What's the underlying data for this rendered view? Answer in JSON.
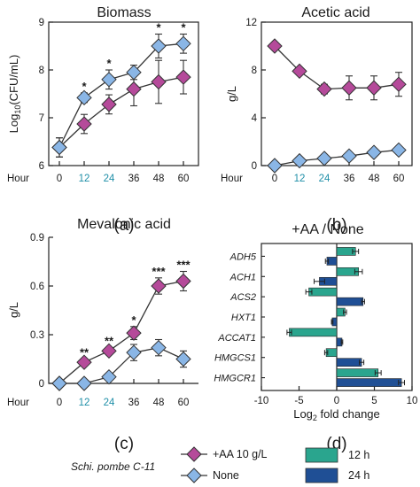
{
  "colors": {
    "aa": "#b54a9a",
    "none": "#8ab6e6",
    "h12": "#2aa58e",
    "h24": "#1f4f95",
    "tick_blue": "#1f8fa8",
    "line": "#333333"
  },
  "legend": {
    "strain": "Schi. pombe C-11",
    "aa_label": "+AA 10 g/L",
    "none_label": "None",
    "h12_label": "12 h",
    "h24_label": "24 h"
  },
  "chart_data": [
    {
      "id": "a",
      "type": "line",
      "title": "Biomass",
      "panel_label": "(a)",
      "ylabel": "Log10(CFU/mL)",
      "x_prefix": "Hour",
      "x": [
        0,
        12,
        24,
        36,
        48,
        60
      ],
      "x_labels": [
        "0",
        "12",
        "24",
        "36",
        "48",
        "60"
      ],
      "ylim": [
        6,
        9
      ],
      "yticks": [
        "6",
        "7",
        "8",
        "9"
      ],
      "series": [
        {
          "name": "+AA 10 g/L",
          "values": [
            6.38,
            6.87,
            7.28,
            7.6,
            7.75,
            7.85
          ],
          "err": [
            0.2,
            0.2,
            0.2,
            0.35,
            0.45,
            0.35
          ]
        },
        {
          "name": "None",
          "values": [
            6.38,
            7.42,
            7.8,
            7.95,
            8.5,
            8.55
          ],
          "err": [
            0.2,
            0.1,
            0.2,
            0.15,
            0.25,
            0.2
          ]
        }
      ],
      "annotations": [
        {
          "x": 12,
          "text": "*"
        },
        {
          "x": 24,
          "text": "*"
        },
        {
          "x": 48,
          "text": "*"
        },
        {
          "x": 60,
          "text": "*"
        }
      ]
    },
    {
      "id": "b",
      "type": "line",
      "title": "Acetic acid",
      "panel_label": "(b)",
      "ylabel": "g/L",
      "x_prefix": "Hour",
      "x": [
        0,
        12,
        24,
        36,
        48,
        60
      ],
      "x_labels": [
        "0",
        "12",
        "24",
        "36",
        "48",
        "60"
      ],
      "ylim": [
        0,
        12
      ],
      "yticks": [
        "0",
        "4",
        "8",
        "12"
      ],
      "series": [
        {
          "name": "+AA 10 g/L",
          "values": [
            10.0,
            7.9,
            6.4,
            6.5,
            6.5,
            6.8
          ],
          "err": [
            0.2,
            0.3,
            0.4,
            1.0,
            1.0,
            1.0
          ]
        },
        {
          "name": "None",
          "values": [
            0.0,
            0.4,
            0.6,
            0.8,
            1.1,
            1.3
          ],
          "err": [
            0.1,
            0.2,
            0.2,
            0.2,
            0.3,
            0.3
          ]
        }
      ],
      "annotations": []
    },
    {
      "id": "c",
      "type": "line",
      "title": "Mevalonic acid",
      "panel_label": "(c)",
      "ylabel": "g/L",
      "x_prefix": "Hour",
      "x": [
        0,
        12,
        24,
        36,
        48,
        60
      ],
      "x_labels": [
        "0",
        "12",
        "24",
        "36",
        "48",
        "60"
      ],
      "ylim": [
        0,
        0.9
      ],
      "yticks": [
        "0",
        "0.3",
        "0.6",
        "0.9"
      ],
      "series": [
        {
          "name": "+AA 10 g/L",
          "values": [
            0.0,
            0.13,
            0.2,
            0.31,
            0.6,
            0.63
          ],
          "err": [
            0.0,
            0.02,
            0.02,
            0.04,
            0.05,
            0.06
          ]
        },
        {
          "name": "None",
          "values": [
            0.0,
            0.0,
            0.04,
            0.19,
            0.22,
            0.15
          ],
          "err": [
            0.0,
            0.01,
            0.02,
            0.05,
            0.05,
            0.05
          ]
        }
      ],
      "annotations": [
        {
          "x": 12,
          "text": "**"
        },
        {
          "x": 24,
          "text": "**"
        },
        {
          "x": 36,
          "text": "*"
        },
        {
          "x": 48,
          "text": "***"
        },
        {
          "x": 60,
          "text": "***"
        }
      ]
    },
    {
      "id": "d",
      "type": "bar",
      "title": "+AA / None",
      "panel_label": "(d)",
      "xlabel": "Log2 fold change",
      "xlim": [
        -10,
        10
      ],
      "xticks": [
        "-10",
        "-5",
        "0",
        "5",
        "10"
      ],
      "categories": [
        "ADH5",
        "ACH1",
        "ACS2",
        "HXT1",
        "ACCAT1",
        "HMGCS1",
        "HMGCR1"
      ],
      "series": [
        {
          "name": "12 h",
          "values": [
            2.5,
            2.9,
            -3.7,
            1.1,
            -6.3,
            -1.4,
            5.5
          ],
          "err": [
            0.4,
            0.5,
            0.4,
            0.2,
            0.3,
            0.2,
            0.4
          ]
        },
        {
          "name": "24 h",
          "values": [
            -1.3,
            -2.3,
            3.5,
            -0.6,
            0.7,
            3.3,
            8.6
          ],
          "err": [
            0.2,
            0.7,
            0.2,
            0.1,
            0.1,
            0.3,
            0.4
          ]
        }
      ]
    }
  ]
}
